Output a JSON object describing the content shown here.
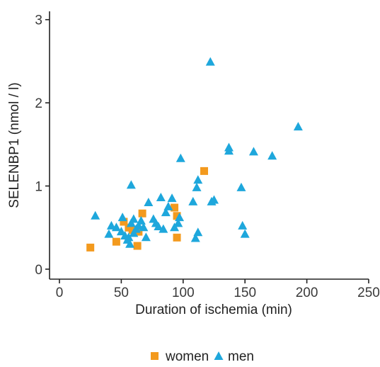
{
  "chart_data": {
    "type": "scatter",
    "title": "",
    "xlabel": "Duration of ischemia (min)",
    "ylabel": "SELENBP1 (nmol / l)",
    "xlim": [
      -8,
      250
    ],
    "ylim": [
      -0.12,
      3.1
    ],
    "xticks": [
      0,
      50,
      100,
      150,
      200,
      250
    ],
    "xtick_labels": [
      "0",
      "50",
      "100",
      "150",
      "200",
      "250"
    ],
    "yticks": [
      0,
      1,
      2,
      3
    ],
    "ytick_labels": [
      "0",
      "1",
      "2",
      "3"
    ],
    "grid": false,
    "legend_position": "bottom",
    "series": [
      {
        "name": "women",
        "marker": "square",
        "color": "#f39a1e",
        "points": [
          [
            25,
            0.26
          ],
          [
            46,
            0.33
          ],
          [
            52,
            0.57
          ],
          [
            56,
            0.5
          ],
          [
            59,
            0.47
          ],
          [
            63,
            0.28
          ],
          [
            64,
            0.45
          ],
          [
            67,
            0.67
          ],
          [
            93,
            0.74
          ],
          [
            95,
            0.64
          ],
          [
            95,
            0.38
          ],
          [
            117,
            1.18
          ]
        ]
      },
      {
        "name": "men",
        "marker": "triangle",
        "color": "#1ea7dc",
        "points": [
          [
            29,
            0.64
          ],
          [
            40,
            0.42
          ],
          [
            42,
            0.52
          ],
          [
            46,
            0.5
          ],
          [
            50,
            0.45
          ],
          [
            51,
            0.62
          ],
          [
            53,
            0.4
          ],
          [
            55,
            0.35
          ],
          [
            56,
            0.38
          ],
          [
            57,
            0.3
          ],
          [
            58,
            0.55
          ],
          [
            58,
            1.01
          ],
          [
            60,
            0.6
          ],
          [
            60,
            0.43
          ],
          [
            62,
            0.48
          ],
          [
            64,
            0.52
          ],
          [
            66,
            0.58
          ],
          [
            68,
            0.5
          ],
          [
            70,
            0.38
          ],
          [
            72,
            0.8
          ],
          [
            76,
            0.6
          ],
          [
            78,
            0.55
          ],
          [
            80,
            0.51
          ],
          [
            82,
            0.86
          ],
          [
            84,
            0.48
          ],
          [
            86,
            0.68
          ],
          [
            88,
            0.75
          ],
          [
            91,
            0.85
          ],
          [
            93,
            0.5
          ],
          [
            96,
            0.55
          ],
          [
            97,
            0.62
          ],
          [
            98,
            1.33
          ],
          [
            108,
            0.81
          ],
          [
            110,
            0.37
          ],
          [
            111,
            0.98
          ],
          [
            112,
            1.07
          ],
          [
            112,
            0.44
          ],
          [
            122,
            2.49
          ],
          [
            123,
            0.81
          ],
          [
            125,
            0.83
          ],
          [
            137,
            1.46
          ],
          [
            137,
            1.42
          ],
          [
            147,
            0.98
          ],
          [
            148,
            0.52
          ],
          [
            150,
            0.42
          ],
          [
            157,
            1.41
          ],
          [
            172,
            1.36
          ],
          [
            193,
            1.71
          ]
        ]
      }
    ]
  }
}
